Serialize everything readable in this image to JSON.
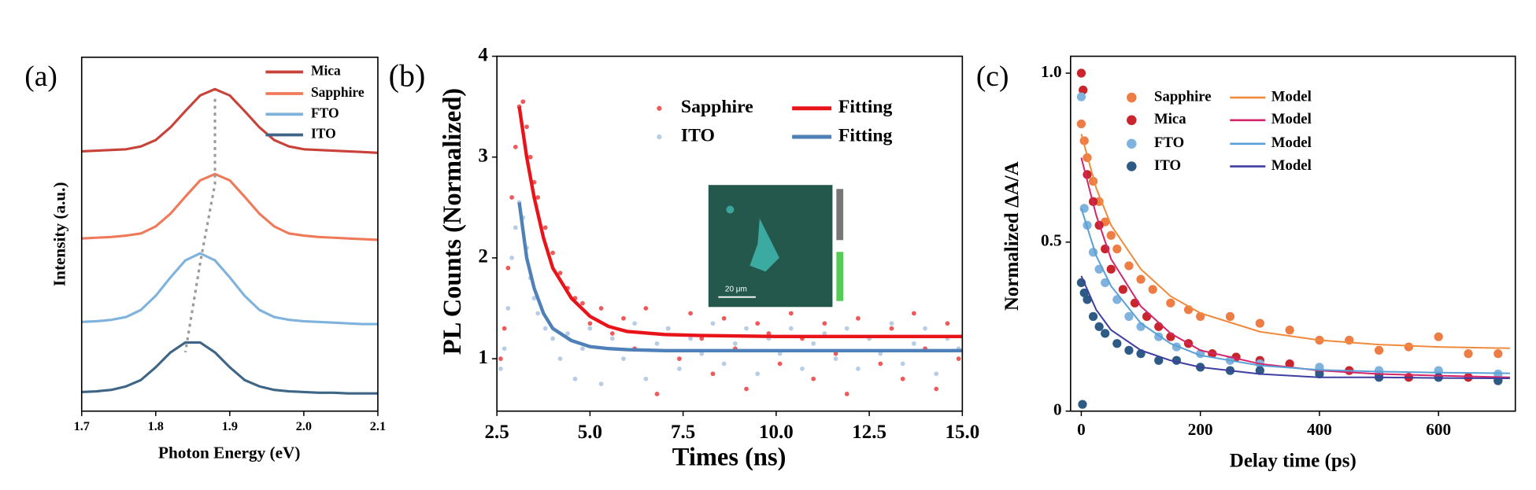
{
  "chart_data": [
    {
      "type": "line",
      "panel_label": "(a)",
      "xlabel": "Photon Energy (eV)",
      "ylabel": "Intensity (a.u.)",
      "xlim": [
        1.7,
        2.1
      ],
      "xticks": [
        1.7,
        1.8,
        1.9,
        {
          "value": 2.0,
          "label": "2.0"
        },
        2.1
      ],
      "ylim": [
        0,
        5
      ],
      "peak_guide": true,
      "legend_columns": 1,
      "series": [
        {
          "name": "Mica",
          "color": "#c8423a",
          "mode": "line",
          "x": [
            1.7,
            1.72,
            1.74,
            1.76,
            1.78,
            1.8,
            1.82,
            1.84,
            1.86,
            1.88,
            1.9,
            1.92,
            1.94,
            1.96,
            1.98,
            2.0,
            2.02,
            2.04,
            2.06,
            2.08,
            2.1
          ],
          "values": [
            3.67,
            3.68,
            3.69,
            3.7,
            3.74,
            3.83,
            4.01,
            4.24,
            4.46,
            4.55,
            4.46,
            4.24,
            4.01,
            3.83,
            3.74,
            3.7,
            3.69,
            3.68,
            3.67,
            3.66,
            3.65
          ]
        },
        {
          "name": "Sapphire",
          "color": "#ef7a5a",
          "mode": "line",
          "x": [
            1.7,
            1.72,
            1.74,
            1.76,
            1.78,
            1.8,
            1.82,
            1.84,
            1.86,
            1.88,
            1.9,
            1.92,
            1.94,
            1.96,
            1.98,
            2.0,
            2.02,
            2.04,
            2.06,
            2.08,
            2.1
          ],
          "values": [
            2.44,
            2.45,
            2.46,
            2.48,
            2.51,
            2.61,
            2.79,
            3.03,
            3.26,
            3.35,
            3.26,
            3.03,
            2.79,
            2.61,
            2.51,
            2.48,
            2.46,
            2.45,
            2.44,
            2.43,
            2.42
          ]
        },
        {
          "name": "FTO",
          "color": "#7fb3dd",
          "mode": "line",
          "x": [
            1.7,
            1.72,
            1.74,
            1.76,
            1.78,
            1.8,
            1.82,
            1.84,
            1.86,
            1.88,
            1.9,
            1.92,
            1.94,
            1.96,
            1.98,
            2.0,
            2.02,
            2.04,
            2.06,
            2.08,
            2.1
          ],
          "values": [
            1.26,
            1.27,
            1.29,
            1.33,
            1.43,
            1.63,
            1.89,
            2.13,
            2.23,
            2.13,
            1.89,
            1.63,
            1.43,
            1.33,
            1.29,
            1.27,
            1.26,
            1.25,
            1.24,
            1.23,
            1.23
          ]
        },
        {
          "name": "ITO",
          "color": "#3e6585",
          "mode": "line",
          "x": [
            1.7,
            1.72,
            1.74,
            1.76,
            1.78,
            1.8,
            1.82,
            1.84,
            1.86,
            1.88,
            1.9,
            1.92,
            1.94,
            1.96,
            1.98,
            2.0,
            2.02,
            2.04,
            2.06,
            2.08,
            2.1
          ],
          "values": [
            0.27,
            0.28,
            0.3,
            0.35,
            0.44,
            0.62,
            0.83,
            0.97,
            0.97,
            0.83,
            0.62,
            0.44,
            0.35,
            0.3,
            0.28,
            0.27,
            0.26,
            0.26,
            0.25,
            0.25,
            0.25
          ]
        }
      ]
    },
    {
      "type": "scatter",
      "panel_label": "(b)",
      "xlabel": "Times (ns)",
      "ylabel": "PL Counts (Normalized)",
      "xlim": [
        2.5,
        15
      ],
      "xticks": [
        2.5,
        {
          "value": 5,
          "label": "5.0"
        },
        7.5,
        {
          "value": 10,
          "label": "10.0"
        },
        12.5,
        {
          "value": 15,
          "label": "15.0"
        }
      ],
      "ylim": [
        0.48,
        4
      ],
      "yticks": [
        1,
        2,
        3,
        4
      ],
      "legend_columns": 2,
      "annotations": [
        "20 μm"
      ],
      "series": [
        {
          "name": "Sapphire",
          "color": "#f0595a",
          "mode": "markers",
          "x": [
            2.6,
            2.7,
            2.8,
            2.9,
            3.0,
            3.1,
            3.2,
            3.3,
            3.4,
            3.5,
            3.6,
            3.8,
            4.0,
            4.2,
            4.4,
            4.6,
            4.8,
            5.0,
            5.3,
            5.6,
            5.9,
            6.2,
            6.5,
            6.8,
            7.1,
            7.4,
            7.7,
            8.0,
            8.3,
            8.6,
            8.9,
            9.2,
            9.5,
            9.8,
            10.1,
            10.4,
            10.7,
            11.0,
            11.3,
            11.6,
            11.9,
            12.2,
            12.5,
            12.8,
            13.1,
            13.4,
            13.7,
            14.0,
            14.3,
            14.6,
            14.9
          ],
          "values": [
            1.0,
            1.3,
            1.9,
            2.6,
            3.1,
            3.5,
            3.55,
            3.3,
            3.0,
            2.75,
            2.6,
            2.3,
            2.05,
            1.85,
            1.7,
            1.6,
            1.55,
            1.35,
            1.5,
            1.25,
            1.4,
            1.1,
            1.5,
            0.65,
            1.3,
            1.0,
            1.45,
            1.2,
            0.85,
            1.4,
            1.1,
            0.7,
            1.35,
            1.25,
            0.95,
            1.45,
            1.2,
            0.8,
            1.35,
            1.05,
            0.65,
            1.4,
            1.2,
            0.95,
            1.3,
            0.8,
            1.45,
            1.1,
            0.7,
            1.35,
            1.0
          ]
        },
        {
          "name": "ITO",
          "color": "#b7cde6",
          "mode": "markers",
          "x": [
            2.6,
            2.7,
            2.8,
            2.9,
            3.0,
            3.1,
            3.2,
            3.3,
            3.4,
            3.5,
            3.6,
            3.8,
            4.0,
            4.2,
            4.4,
            4.6,
            4.8,
            5.0,
            5.3,
            5.6,
            5.9,
            6.2,
            6.5,
            6.8,
            7.1,
            7.4,
            7.7,
            8.0,
            8.3,
            8.6,
            8.9,
            9.2,
            9.5,
            9.8,
            10.1,
            10.4,
            10.7,
            11.0,
            11.3,
            11.6,
            11.9,
            12.2,
            12.5,
            12.8,
            13.1,
            13.4,
            13.7,
            14.0,
            14.3,
            14.6,
            14.9
          ],
          "values": [
            0.9,
            1.1,
            1.5,
            2.0,
            2.3,
            2.55,
            2.4,
            2.1,
            1.8,
            1.6,
            1.45,
            1.3,
            1.2,
            1.0,
            1.25,
            0.8,
            1.1,
            1.3,
            0.75,
            1.2,
            1.0,
            1.35,
            0.8,
            1.15,
            1.3,
            0.9,
            1.2,
            1.05,
            1.35,
            0.95,
            1.15,
            1.3,
            0.85,
            1.2,
            1.05,
            1.3,
            0.9,
            1.15,
            1.25,
            1.0,
            1.3,
            0.9,
            1.2,
            1.05,
            1.35,
            0.95,
            1.15,
            1.3,
            0.85,
            1.2,
            1.1
          ]
        },
        {
          "name": "Fitting",
          "color": "#e8141a",
          "mode": "line",
          "x": [
            3.1,
            3.3,
            3.5,
            3.75,
            4.0,
            4.5,
            5.0,
            5.5,
            6.0,
            7,
            8,
            10,
            12.5,
            15
          ],
          "values": [
            3.5,
            3.0,
            2.6,
            2.2,
            1.9,
            1.6,
            1.42,
            1.32,
            1.27,
            1.24,
            1.23,
            1.22,
            1.22,
            1.22
          ]
        },
        {
          "name": "Fitting",
          "color": "#4f80b8",
          "mode": "line",
          "x": [
            3.1,
            3.3,
            3.5,
            3.75,
            4.0,
            4.5,
            5.0,
            5.5,
            6.0,
            7,
            8,
            10,
            12.5,
            15
          ],
          "values": [
            2.55,
            2.0,
            1.7,
            1.45,
            1.3,
            1.18,
            1.12,
            1.1,
            1.09,
            1.08,
            1.08,
            1.08,
            1.08,
            1.08
          ]
        }
      ]
    },
    {
      "type": "scatter",
      "panel_label": "(c)",
      "xlabel": "Delay time (ps)",
      "ylabel": "Normalized  ΔA/A",
      "xlim": [
        -18,
        729
      ],
      "xticks": [
        0,
        200,
        400,
        600
      ],
      "ylim": [
        0,
        1.05
      ],
      "yticks": [
        0,
        0.5,
        {
          "value": 1,
          "label": "1.0"
        }
      ],
      "legend_columns": 2,
      "series": [
        {
          "name": "Sapphire",
          "color": "#ee7d45",
          "mode": "markers",
          "x": [
            0,
            5,
            10,
            20,
            30,
            40,
            50,
            60,
            80,
            100,
            120,
            150,
            180,
            200,
            250,
            300,
            350,
            400,
            450,
            500,
            550,
            600,
            650,
            700
          ],
          "values": [
            0.85,
            0.8,
            0.75,
            0.68,
            0.62,
            0.56,
            0.52,
            0.48,
            0.43,
            0.39,
            0.36,
            0.32,
            0.3,
            0.28,
            0.28,
            0.26,
            0.24,
            0.21,
            0.21,
            0.18,
            0.19,
            0.22,
            0.17,
            0.17
          ]
        },
        {
          "name": "Mica",
          "color": "#c9252c",
          "mode": "markers",
          "x": [
            0,
            3,
            10,
            20,
            30,
            40,
            50,
            70,
            90,
            110,
            130,
            150,
            180,
            220,
            260,
            300,
            350,
            400,
            450,
            500,
            550,
            600,
            650,
            700
          ],
          "values": [
            1.0,
            0.95,
            0.7,
            0.62,
            0.55,
            0.48,
            0.42,
            0.36,
            0.32,
            0.28,
            0.25,
            0.22,
            0.2,
            0.17,
            0.16,
            0.15,
            0.14,
            0.12,
            0.12,
            0.11,
            0.1,
            0.1,
            0.1,
            0.09
          ]
        },
        {
          "name": "FTO",
          "color": "#7fb2dc",
          "mode": "markers",
          "x": [
            0,
            5,
            10,
            20,
            30,
            40,
            60,
            80,
            100,
            130,
            160,
            200,
            250,
            300,
            400,
            500,
            600,
            700
          ],
          "values": [
            0.93,
            0.6,
            0.55,
            0.47,
            0.42,
            0.38,
            0.33,
            0.28,
            0.25,
            0.22,
            0.19,
            0.17,
            0.15,
            0.14,
            0.13,
            0.12,
            0.12,
            0.11
          ]
        },
        {
          "name": "ITO",
          "color": "#2e5b85",
          "mode": "markers",
          "x": [
            0,
            2,
            5,
            10,
            20,
            30,
            40,
            60,
            80,
            100,
            130,
            160,
            200,
            250,
            300,
            400,
            500,
            600,
            700
          ],
          "values": [
            0.38,
            0.02,
            0.35,
            0.33,
            0.28,
            0.25,
            0.23,
            0.2,
            0.18,
            0.17,
            0.15,
            0.15,
            0.13,
            0.12,
            0.12,
            0.11,
            0.1,
            0.1,
            0.09
          ]
        },
        {
          "name": "Model",
          "color": "#f08a3c",
          "mode": "line",
          "x": [
            0,
            25,
            50,
            100,
            150,
            200,
            300,
            400,
            500,
            600,
            720
          ],
          "values": [
            0.82,
            0.66,
            0.55,
            0.42,
            0.34,
            0.29,
            0.235,
            0.21,
            0.197,
            0.19,
            0.186
          ]
        },
        {
          "name": "Model",
          "color": "#d4256a",
          "mode": "line",
          "x": [
            0,
            25,
            50,
            100,
            150,
            200,
            300,
            400,
            500,
            600,
            720
          ],
          "values": [
            0.75,
            0.58,
            0.45,
            0.31,
            0.23,
            0.18,
            0.14,
            0.12,
            0.11,
            0.105,
            0.1
          ]
        },
        {
          "name": "Model",
          "color": "#5aa0d8",
          "mode": "line",
          "x": [
            0,
            25,
            50,
            100,
            150,
            200,
            300,
            400,
            500,
            600,
            720
          ],
          "values": [
            0.6,
            0.46,
            0.37,
            0.26,
            0.2,
            0.165,
            0.135,
            0.122,
            0.117,
            0.114,
            0.112
          ]
        },
        {
          "name": "Model",
          "color": "#3e3fa0",
          "mode": "line",
          "x": [
            0,
            25,
            50,
            100,
            150,
            200,
            300,
            400,
            500,
            600,
            720
          ],
          "values": [
            0.4,
            0.3,
            0.24,
            0.18,
            0.15,
            0.13,
            0.11,
            0.1,
            0.1,
            0.098,
            0.097
          ]
        }
      ]
    }
  ]
}
